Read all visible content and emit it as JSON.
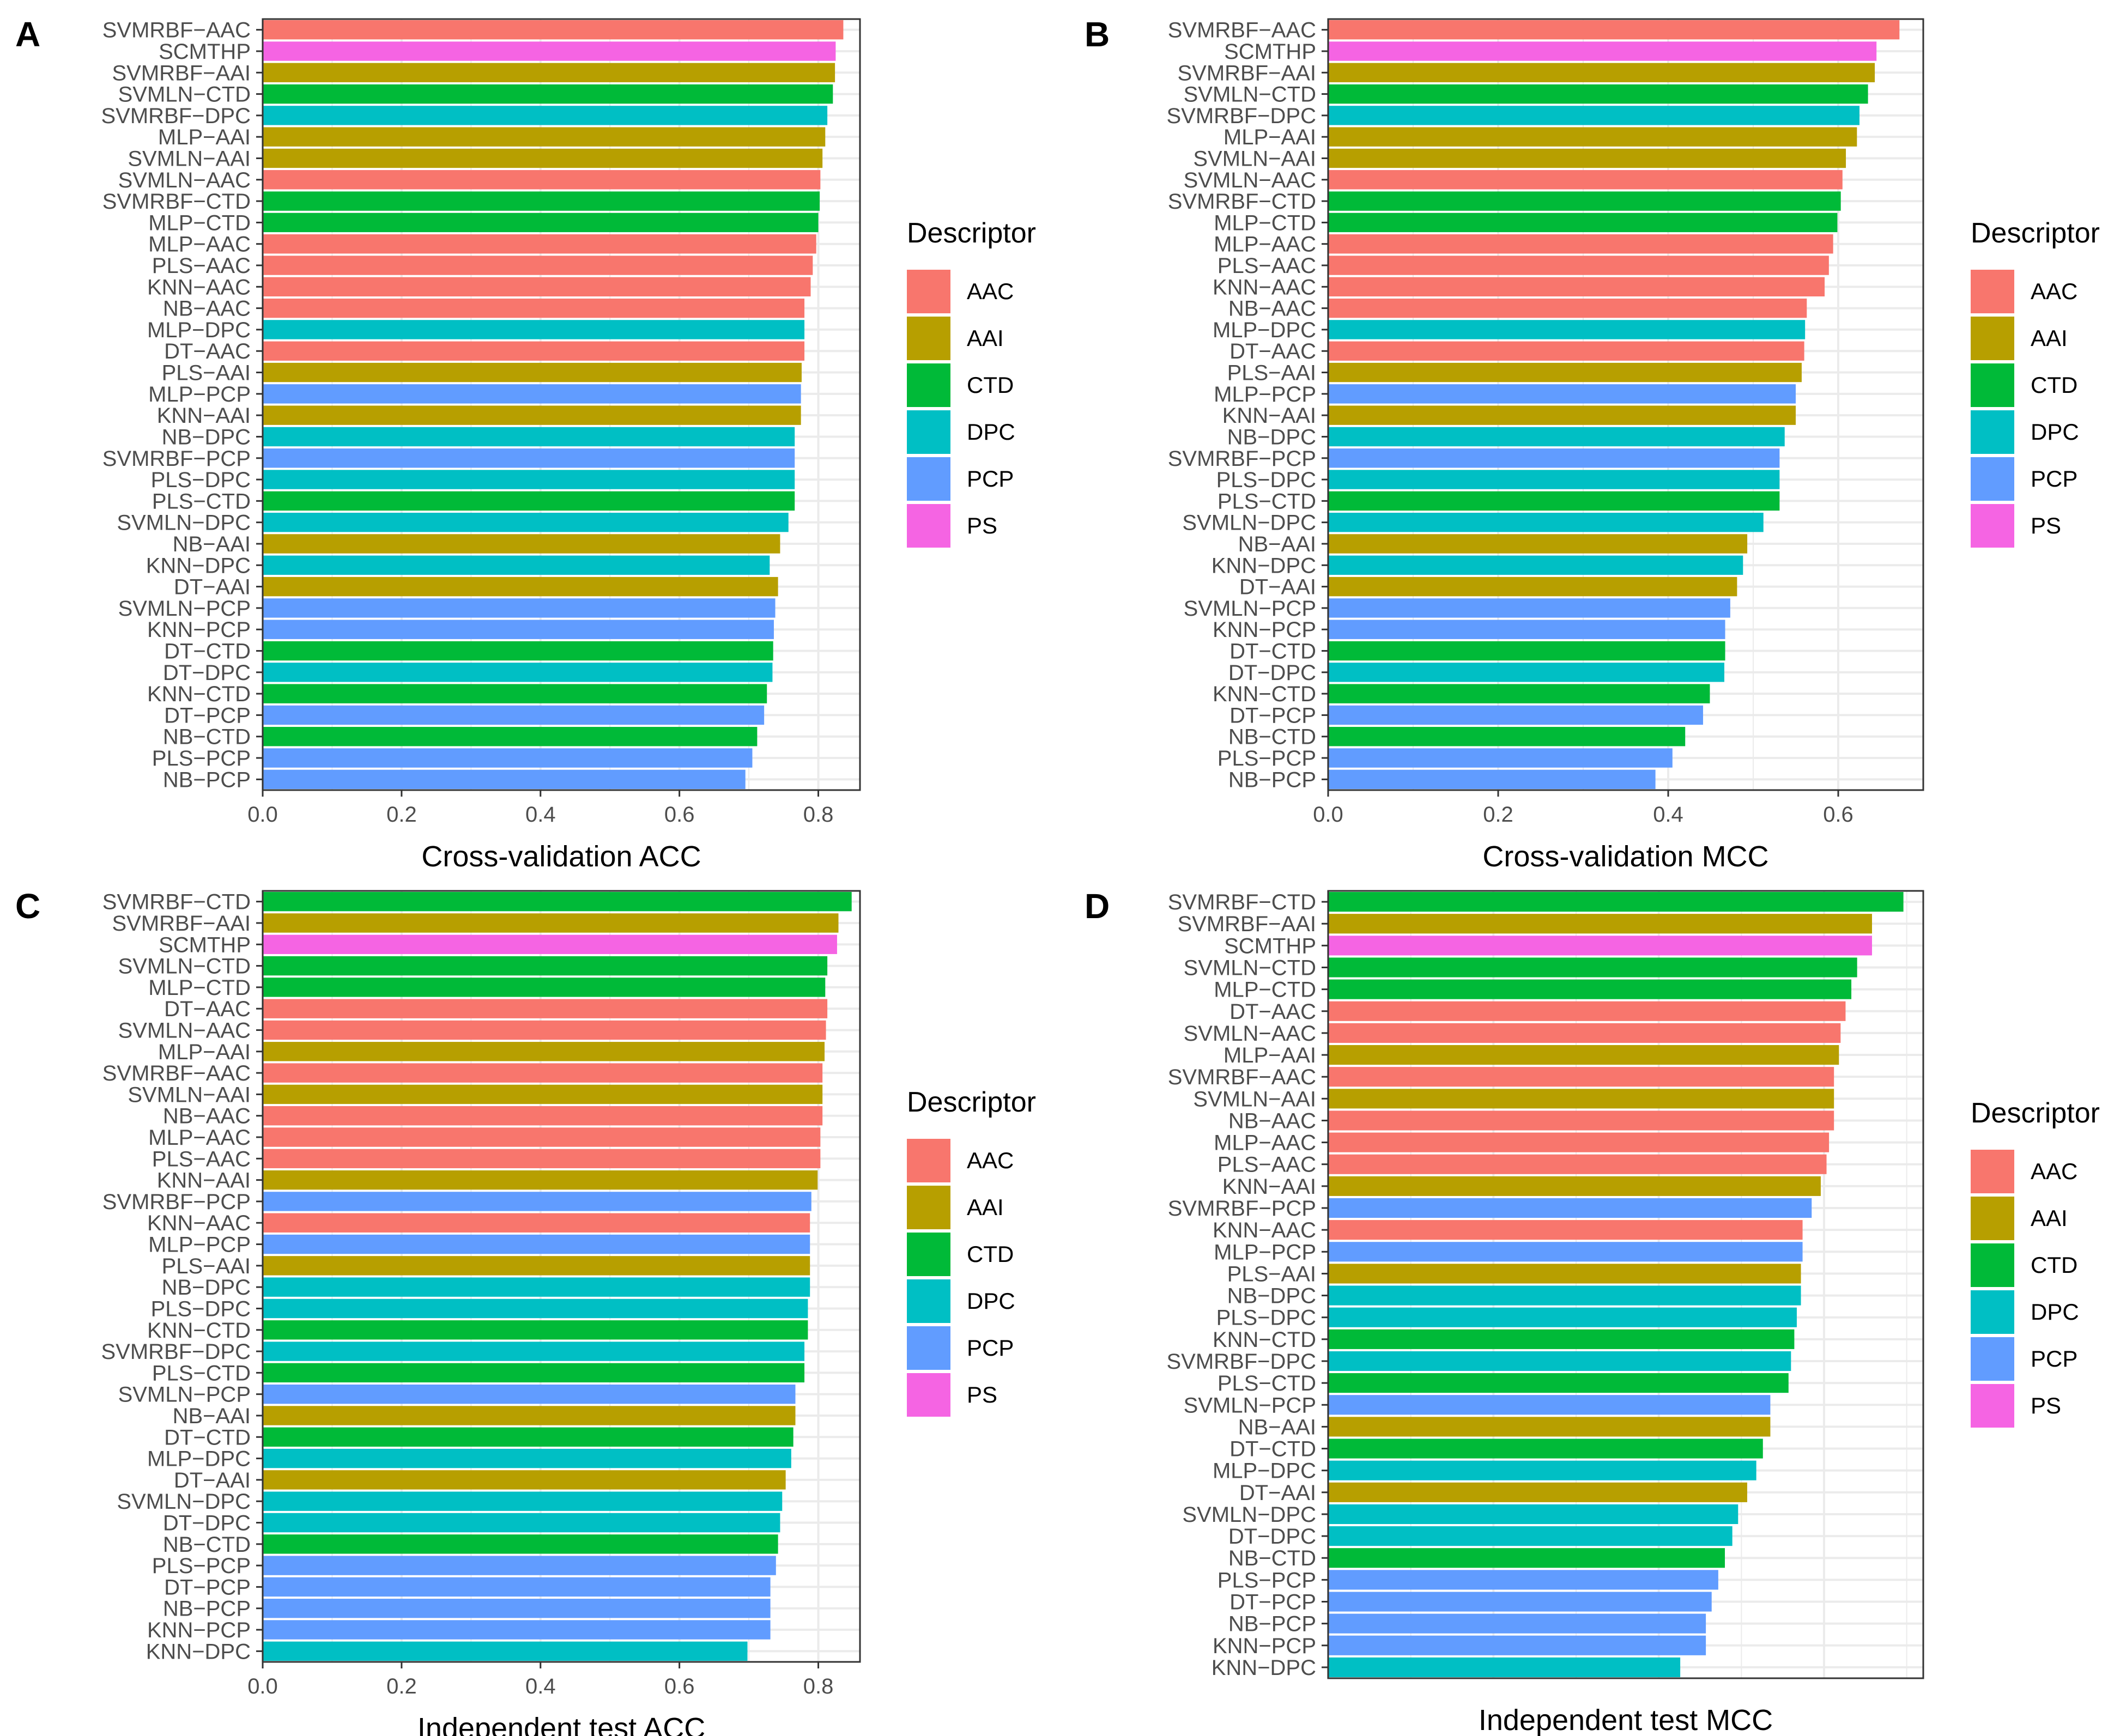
{
  "colors": {
    "AAC": "#F8766D",
    "AAI": "#B79F00",
    "CTD": "#00BA38",
    "DPC": "#00BFC4",
    "PCP": "#619CFF",
    "PS": "#F564E3",
    "panel_grid": "#EBEBEB",
    "axis_text": "#4D4D4D",
    "border": "#333333"
  },
  "legend": {
    "title": "Descriptor",
    "items": [
      "AAC",
      "AAI",
      "CTD",
      "DPC",
      "PCP",
      "PS"
    ]
  },
  "chart_data": [
    {
      "type": "bar",
      "orientation": "horizontal",
      "panel_label": "A",
      "title": "",
      "xlabel": "Cross-validation ACC",
      "ylabel": "",
      "xlim": [
        0,
        0.86
      ],
      "xticks": [
        0.0,
        0.2,
        0.4,
        0.6,
        0.8
      ],
      "xtick_labels": [
        "0.0",
        "0.2",
        "0.4",
        "0.6",
        "0.8"
      ],
      "grid": true,
      "legend_position": "right",
      "categories": [
        "SVMRBF-AAC",
        "SCMTHP",
        "SVMRBF-AAI",
        "SVMLN-CTD",
        "SVMRBF-DPC",
        "MLP-AAI",
        "SVMLN-AAI",
        "SVMLN-AAC",
        "SVMRBF-CTD",
        "MLP-CTD",
        "MLP-AAC",
        "PLS-AAC",
        "KNN-AAC",
        "NB-AAC",
        "MLP-DPC",
        "DT-AAC",
        "PLS-AAI",
        "MLP-PCP",
        "KNN-AAI",
        "NB-DPC",
        "SVMRBF-PCP",
        "PLS-DPC",
        "PLS-CTD",
        "SVMLN-DPC",
        "NB-AAI",
        "KNN-DPC",
        "DT-AAI",
        "SVMLN-PCP",
        "KNN-PCP",
        "DT-CTD",
        "DT-DPC",
        "KNN-CTD",
        "DT-PCP",
        "NB-CTD",
        "PLS-PCP",
        "NB-PCP"
      ],
      "display_labels": [
        "SVMRBF−AAC",
        "SCMTHP",
        "SVMRBF−AAI",
        "SVMLN−CTD",
        "SVMRBF−DPC",
        "MLP−AAI",
        "SVMLN−AAI",
        "SVMLN−AAC",
        "SVMRBF−CTD",
        "MLP−CTD",
        "MLP−AAC",
        "PLS−AAC",
        "KNN−AAC",
        "NB−AAC",
        "MLP−DPC",
        "DT−AAC",
        "PLS−AAI",
        "MLP−PCP",
        "KNN−AAI",
        "NB−DPC",
        "SVMRBF−PCP",
        "PLS−DPC",
        "PLS−CTD",
        "SVMLN−DPC",
        "NB−AAI",
        "KNN−DPC",
        "DT−AAI",
        "SVMLN−PCP",
        "KNN−PCP",
        "DT−CTD",
        "DT−DPC",
        "KNN−CTD",
        "DT−PCP",
        "NB−CTD",
        "PLS−PCP",
        "NB−PCP"
      ],
      "descriptors": [
        "AAC",
        "PS",
        "AAI",
        "CTD",
        "DPC",
        "AAI",
        "AAI",
        "AAC",
        "CTD",
        "CTD",
        "AAC",
        "AAC",
        "AAC",
        "AAC",
        "DPC",
        "AAC",
        "AAI",
        "PCP",
        "AAI",
        "DPC",
        "PCP",
        "DPC",
        "CTD",
        "DPC",
        "AAI",
        "DPC",
        "AAI",
        "PCP",
        "PCP",
        "CTD",
        "DPC",
        "CTD",
        "PCP",
        "CTD",
        "PCP",
        "PCP"
      ],
      "values": [
        0.836,
        0.825,
        0.824,
        0.821,
        0.813,
        0.81,
        0.806,
        0.803,
        0.802,
        0.8,
        0.797,
        0.792,
        0.789,
        0.78,
        0.78,
        0.78,
        0.776,
        0.775,
        0.775,
        0.766,
        0.766,
        0.766,
        0.766,
        0.757,
        0.745,
        0.73,
        0.742,
        0.738,
        0.736,
        0.735,
        0.734,
        0.726,
        0.722,
        0.712,
        0.705,
        0.695
      ]
    },
    {
      "type": "bar",
      "orientation": "horizontal",
      "panel_label": "B",
      "title": "",
      "xlabel": "Cross-validation MCC",
      "ylabel": "",
      "xlim": [
        0,
        0.7
      ],
      "xticks": [
        0.0,
        0.2,
        0.4,
        0.6
      ],
      "xtick_labels": [
        "0.0",
        "0.2",
        "0.4",
        "0.6"
      ],
      "grid": true,
      "legend_position": "right",
      "categories": [
        "SVMRBF-AAC",
        "SCMTHP",
        "SVMRBF-AAI",
        "SVMLN-CTD",
        "SVMRBF-DPC",
        "MLP-AAI",
        "SVMLN-AAI",
        "SVMLN-AAC",
        "SVMRBF-CTD",
        "MLP-CTD",
        "MLP-AAC",
        "PLS-AAC",
        "KNN-AAC",
        "NB-AAC",
        "MLP-DPC",
        "DT-AAC",
        "PLS-AAI",
        "MLP-PCP",
        "KNN-AAI",
        "NB-DPC",
        "SVMRBF-PCP",
        "PLS-DPC",
        "PLS-CTD",
        "SVMLN-DPC",
        "NB-AAI",
        "KNN-DPC",
        "DT-AAI",
        "SVMLN-PCP",
        "KNN-PCP",
        "DT-CTD",
        "DT-DPC",
        "KNN-CTD",
        "DT-PCP",
        "NB-CTD",
        "PLS-PCP",
        "NB-PCP"
      ],
      "display_labels": [
        "SVMRBF−AAC",
        "SCMTHP",
        "SVMRBF−AAI",
        "SVMLN−CTD",
        "SVMRBF−DPC",
        "MLP−AAI",
        "SVMLN−AAI",
        "SVMLN−AAC",
        "SVMRBF−CTD",
        "MLP−CTD",
        "MLP−AAC",
        "PLS−AAC",
        "KNN−AAC",
        "NB−AAC",
        "MLP−DPC",
        "DT−AAC",
        "PLS−AAI",
        "MLP−PCP",
        "KNN−AAI",
        "NB−DPC",
        "SVMRBF−PCP",
        "PLS−DPC",
        "PLS−CTD",
        "SVMLN−DPC",
        "NB−AAI",
        "KNN−DPC",
        "DT−AAI",
        "SVMLN−PCP",
        "KNN−PCP",
        "DT−CTD",
        "DT−DPC",
        "KNN−CTD",
        "DT−PCP",
        "NB−CTD",
        "PLS−PCP",
        "NB−PCP"
      ],
      "descriptors": [
        "AAC",
        "PS",
        "AAI",
        "CTD",
        "DPC",
        "AAI",
        "AAI",
        "AAC",
        "CTD",
        "CTD",
        "AAC",
        "AAC",
        "AAC",
        "AAC",
        "DPC",
        "AAC",
        "AAI",
        "PCP",
        "AAI",
        "DPC",
        "PCP",
        "DPC",
        "CTD",
        "DPC",
        "AAI",
        "DPC",
        "AAI",
        "PCP",
        "PCP",
        "CTD",
        "DPC",
        "CTD",
        "PCP",
        "CTD",
        "PCP",
        "PCP"
      ],
      "values": [
        0.672,
        0.645,
        0.643,
        0.635,
        0.625,
        0.622,
        0.609,
        0.605,
        0.603,
        0.599,
        0.594,
        0.589,
        0.584,
        0.563,
        0.561,
        0.56,
        0.557,
        0.55,
        0.55,
        0.537,
        0.531,
        0.531,
        0.531,
        0.512,
        0.493,
        0.488,
        0.481,
        0.473,
        0.467,
        0.467,
        0.466,
        0.449,
        0.441,
        0.42,
        0.405,
        0.385
      ]
    },
    {
      "type": "bar",
      "orientation": "horizontal",
      "panel_label": "C",
      "title": "",
      "xlabel": "Independent test ACC",
      "ylabel": "",
      "xlim": [
        0,
        0.86
      ],
      "xticks": [
        0.0,
        0.2,
        0.4,
        0.6,
        0.8
      ],
      "xtick_labels": [
        "0.0",
        "0.2",
        "0.4",
        "0.6",
        "0.8"
      ],
      "grid": true,
      "legend_position": "right",
      "categories": [
        "SVMRBF-CTD",
        "SVMRBF-AAI",
        "SCMTHP",
        "SVMLN-CTD",
        "MLP-CTD",
        "DT-AAC",
        "SVMLN-AAC",
        "MLP-AAI",
        "SVMRBF-AAC",
        "SVMLN-AAI",
        "NB-AAC",
        "MLP-AAC",
        "PLS-AAC",
        "KNN-AAI",
        "SVMRBF-PCP",
        "KNN-AAC",
        "MLP-PCP",
        "PLS-AAI",
        "NB-DPC",
        "PLS-DPC",
        "KNN-CTD",
        "SVMRBF-DPC",
        "PLS-CTD",
        "SVMLN-PCP",
        "NB-AAI",
        "DT-CTD",
        "MLP-DPC",
        "DT-AAI",
        "SVMLN-DPC",
        "DT-DPC",
        "NB-CTD",
        "PLS-PCP",
        "DT-PCP",
        "NB-PCP",
        "KNN-PCP",
        "KNN-DPC"
      ],
      "display_labels": [
        "SVMRBF−CTD",
        "SVMRBF−AAI",
        "SCMTHP",
        "SVMLN−CTD",
        "MLP−CTD",
        "DT−AAC",
        "SVMLN−AAC",
        "MLP−AAI",
        "SVMRBF−AAC",
        "SVMLN−AAI",
        "NB−AAC",
        "MLP−AAC",
        "PLS−AAC",
        "KNN−AAI",
        "SVMRBF−PCP",
        "KNN−AAC",
        "MLP−PCP",
        "PLS−AAI",
        "NB−DPC",
        "PLS−DPC",
        "KNN−CTD",
        "SVMRBF−DPC",
        "PLS−CTD",
        "SVMLN−PCP",
        "NB−AAI",
        "DT−CTD",
        "MLP−DPC",
        "DT−AAI",
        "SVMLN−DPC",
        "DT−DPC",
        "NB−CTD",
        "PLS−PCP",
        "DT−PCP",
        "NB−PCP",
        "KNN−PCP",
        "KNN−DPC"
      ],
      "descriptors": [
        "CTD",
        "AAI",
        "PS",
        "CTD",
        "CTD",
        "AAC",
        "AAC",
        "AAI",
        "AAC",
        "AAI",
        "AAC",
        "AAC",
        "AAC",
        "AAI",
        "PCP",
        "AAC",
        "PCP",
        "AAI",
        "DPC",
        "DPC",
        "CTD",
        "DPC",
        "CTD",
        "PCP",
        "AAI",
        "CTD",
        "DPC",
        "AAI",
        "DPC",
        "DPC",
        "CTD",
        "PCP",
        "PCP",
        "PCP",
        "PCP",
        "DPC"
      ],
      "values": [
        0.848,
        0.829,
        0.827,
        0.813,
        0.81,
        0.813,
        0.811,
        0.809,
        0.806,
        0.806,
        0.806,
        0.803,
        0.803,
        0.799,
        0.79,
        0.788,
        0.788,
        0.788,
        0.788,
        0.785,
        0.785,
        0.78,
        0.78,
        0.767,
        0.767,
        0.764,
        0.761,
        0.753,
        0.748,
        0.745,
        0.742,
        0.739,
        0.731,
        0.731,
        0.731,
        0.698
      ]
    },
    {
      "type": "bar",
      "orientation": "horizontal",
      "panel_label": "D",
      "title": "",
      "xlabel": "Independent test MCC",
      "ylabel": "",
      "xlim": [
        0,
        0.72
      ],
      "xticks": [],
      "xtick_labels": [],
      "grid": true,
      "legend_position": "right",
      "categories": [
        "SVMRBF-CTD",
        "SVMRBF-AAI",
        "SCMTHP",
        "SVMLN-CTD",
        "MLP-CTD",
        "DT-AAC",
        "SVMLN-AAC",
        "MLP-AAI",
        "SVMRBF-AAC",
        "SVMLN-AAI",
        "NB-AAC",
        "MLP-AAC",
        "PLS-AAC",
        "KNN-AAI",
        "SVMRBF-PCP",
        "KNN-AAC",
        "MLP-PCP",
        "PLS-AAI",
        "NB-DPC",
        "PLS-DPC",
        "KNN-CTD",
        "SVMRBF-DPC",
        "PLS-CTD",
        "SVMLN-PCP",
        "NB-AAI",
        "DT-CTD",
        "MLP-DPC",
        "DT-AAI",
        "SVMLN-DPC",
        "DT-DPC",
        "NB-CTD",
        "PLS-PCP",
        "DT-PCP",
        "NB-PCP",
        "KNN-PCP",
        "KNN-DPC"
      ],
      "display_labels": [
        "SVMRBF−CTD",
        "SVMRBF−AAI",
        "SCMTHP",
        "SVMLN−CTD",
        "MLP−CTD",
        "DT−AAC",
        "SVMLN−AAC",
        "MLP−AAI",
        "SVMRBF−AAC",
        "SVMLN−AAI",
        "NB−AAC",
        "MLP−AAC",
        "PLS−AAC",
        "KNN−AAI",
        "SVMRBF−PCP",
        "KNN−AAC",
        "MLP−PCP",
        "PLS−AAI",
        "NB−DPC",
        "PLS−DPC",
        "KNN−CTD",
        "SVMRBF−DPC",
        "PLS−CTD",
        "SVMLN−PCP",
        "NB−AAI",
        "DT−CTD",
        "MLP−DPC",
        "DT−AAI",
        "SVMLN−DPC",
        "DT−DPC",
        "NB−CTD",
        "PLS−PCP",
        "DT−PCP",
        "NB−PCP",
        "KNN−PCP",
        "KNN−DPC"
      ],
      "descriptors": [
        "CTD",
        "AAI",
        "PS",
        "CTD",
        "CTD",
        "AAC",
        "AAC",
        "AAI",
        "AAC",
        "AAI",
        "AAC",
        "AAC",
        "AAC",
        "AAI",
        "PCP",
        "AAC",
        "PCP",
        "AAI",
        "DPC",
        "DPC",
        "CTD",
        "DPC",
        "CTD",
        "PCP",
        "AAI",
        "CTD",
        "DPC",
        "AAI",
        "DPC",
        "DPC",
        "CTD",
        "PCP",
        "PCP",
        "PCP",
        "PCP",
        "DPC"
      ],
      "values": [
        0.696,
        0.658,
        0.658,
        0.64,
        0.633,
        0.626,
        0.62,
        0.618,
        0.612,
        0.612,
        0.612,
        0.606,
        0.603,
        0.596,
        0.585,
        0.574,
        0.574,
        0.572,
        0.572,
        0.567,
        0.564,
        0.56,
        0.557,
        0.535,
        0.535,
        0.526,
        0.518,
        0.507,
        0.496,
        0.489,
        0.48,
        0.472,
        0.464,
        0.457,
        0.457,
        0.426
      ]
    }
  ]
}
